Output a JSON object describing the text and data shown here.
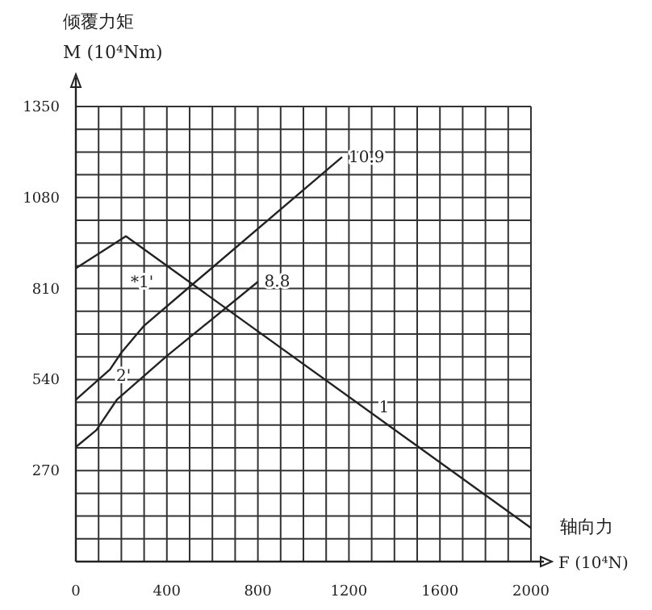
{
  "chart_data": {
    "type": "line",
    "xlabel": "轴向力\nF (10⁴N)",
    "ylabel": "倾覆力矩\nM (10⁴Nm)",
    "xlim": [
      0,
      2000
    ],
    "xticks": [
      0,
      400,
      800,
      1200,
      1600,
      2000
    ],
    "ylim": [
      0,
      1350
    ],
    "yticks": [
      270,
      540,
      810,
      1080,
      1350
    ],
    "grid": true,
    "marker": "none",
    "line_style": "solid",
    "series": [
      {
        "name": "10.9",
        "color": "#222222",
        "x": [
          0,
          100,
          150,
          200,
          300,
          500,
          1100,
          1170
        ],
        "values": [
          480,
          540,
          570,
          620,
          700,
          815,
          1160,
          1200
        ]
      },
      {
        "name": "8.8",
        "color": "#222222",
        "x": [
          0,
          90,
          180,
          400,
          800
        ],
        "values": [
          340,
          390,
          480,
          610,
          830
        ]
      },
      {
        "name": "1",
        "color": "#222222",
        "x": [
          0,
          220,
          2000
        ],
        "values": [
          870,
          965,
          100
        ]
      }
    ],
    "annotations": [
      "*1'",
      "2'"
    ]
  }
}
